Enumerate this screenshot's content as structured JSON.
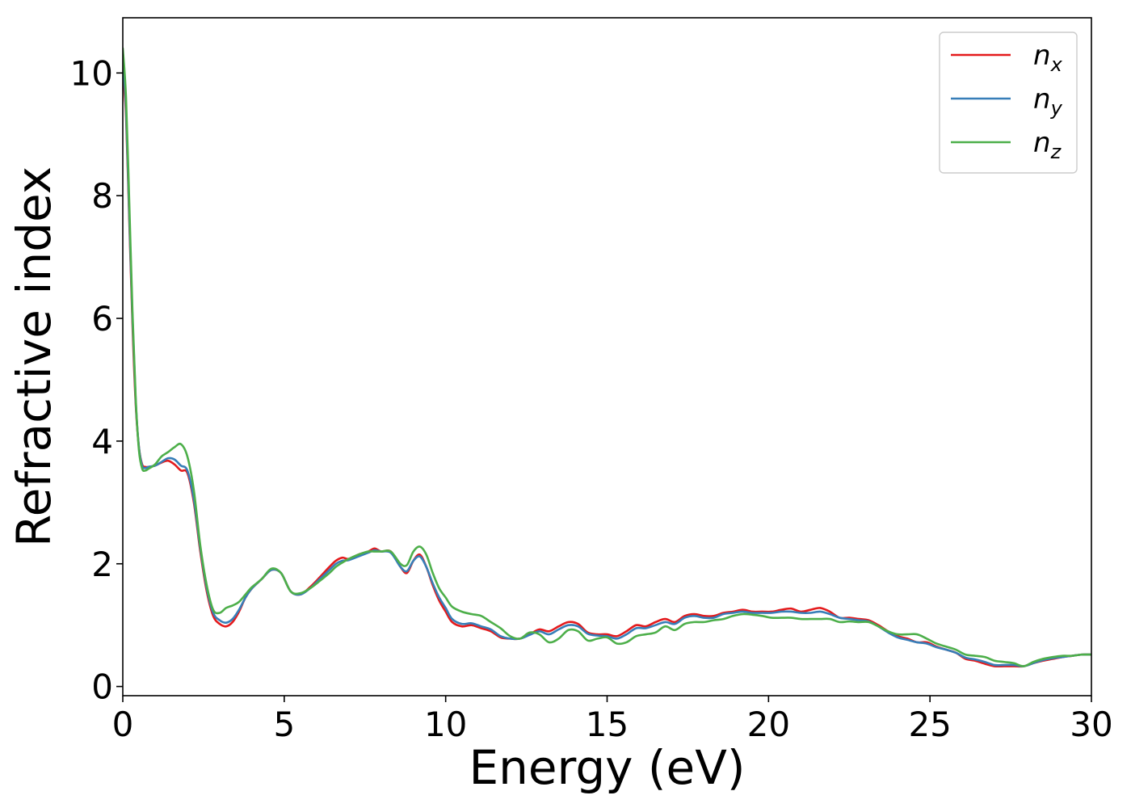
{
  "chart_data": {
    "type": "line",
    "title": "",
    "xlabel": "Energy (eV)",
    "ylabel": "Refractive index",
    "xlim": [
      0,
      30
    ],
    "ylim": [
      -0.15,
      10.9
    ],
    "xticks": [
      0,
      5,
      10,
      15,
      20,
      25,
      30
    ],
    "yticks": [
      0,
      2,
      4,
      6,
      8,
      10
    ],
    "grid": false,
    "legend_position": "top-right",
    "series": [
      {
        "name": "n",
        "subscript": "x",
        "color": "#e41a1c",
        "x": [
          0,
          0.1,
          0.2,
          0.3,
          0.4,
          0.5,
          0.6,
          0.7,
          0.8,
          1.0,
          1.2,
          1.4,
          1.6,
          1.8,
          2.0,
          2.2,
          2.4,
          2.6,
          2.8,
          3.0,
          3.2,
          3.4,
          3.6,
          3.8,
          4.0,
          4.3,
          4.6,
          4.9,
          5.2,
          5.5,
          5.8,
          6.1,
          6.4,
          6.6,
          6.8,
          7.0,
          7.3,
          7.6,
          7.8,
          8.0,
          8.3,
          8.6,
          8.8,
          9.0,
          9.2,
          9.4,
          9.6,
          9.8,
          10.0,
          10.2,
          10.5,
          10.8,
          11.1,
          11.4,
          11.7,
          12.0,
          12.3,
          12.6,
          12.9,
          13.2,
          13.5,
          13.8,
          14.1,
          14.4,
          14.7,
          15.0,
          15.3,
          15.6,
          15.9,
          16.2,
          16.5,
          16.8,
          17.1,
          17.4,
          17.7,
          18.0,
          18.3,
          18.6,
          18.9,
          19.2,
          19.5,
          19.8,
          20.1,
          20.4,
          20.7,
          21.0,
          21.3,
          21.6,
          21.9,
          22.2,
          22.5,
          22.8,
          23.1,
          23.4,
          23.7,
          24.0,
          24.3,
          24.6,
          24.9,
          25.2,
          25.5,
          25.8,
          26.1,
          26.4,
          26.7,
          27.0,
          27.3,
          27.6,
          27.9,
          28.2,
          28.5,
          28.8,
          29.1,
          29.4,
          29.7,
          30.0
        ],
        "y": [
          10.0,
          9.3,
          7.6,
          5.9,
          4.6,
          3.9,
          3.62,
          3.58,
          3.58,
          3.6,
          3.65,
          3.68,
          3.62,
          3.52,
          3.48,
          3.0,
          2.2,
          1.55,
          1.15,
          1.02,
          0.98,
          1.05,
          1.22,
          1.45,
          1.6,
          1.75,
          1.9,
          1.85,
          1.55,
          1.5,
          1.62,
          1.78,
          1.95,
          2.05,
          2.1,
          2.08,
          2.15,
          2.2,
          2.25,
          2.2,
          2.2,
          1.95,
          1.85,
          2.05,
          2.15,
          1.95,
          1.65,
          1.4,
          1.22,
          1.05,
          0.98,
          1.0,
          0.95,
          0.9,
          0.8,
          0.78,
          0.78,
          0.85,
          0.93,
          0.9,
          0.98,
          1.05,
          1.02,
          0.88,
          0.85,
          0.85,
          0.82,
          0.9,
          1.0,
          0.98,
          1.05,
          1.1,
          1.05,
          1.15,
          1.18,
          1.15,
          1.15,
          1.2,
          1.22,
          1.25,
          1.22,
          1.22,
          1.22,
          1.25,
          1.27,
          1.22,
          1.25,
          1.28,
          1.22,
          1.12,
          1.12,
          1.1,
          1.08,
          1.0,
          0.9,
          0.82,
          0.78,
          0.72,
          0.72,
          0.65,
          0.6,
          0.55,
          0.45,
          0.42,
          0.37,
          0.33,
          0.33,
          0.33,
          0.33,
          0.38,
          0.42,
          0.45,
          0.48,
          0.5,
          0.52,
          0.52
        ]
      },
      {
        "name": "n",
        "subscript": "y",
        "color": "#377eb8",
        "x": [
          0,
          0.1,
          0.2,
          0.3,
          0.4,
          0.5,
          0.6,
          0.7,
          0.8,
          1.0,
          1.2,
          1.4,
          1.6,
          1.8,
          2.0,
          2.2,
          2.4,
          2.6,
          2.8,
          3.0,
          3.2,
          3.4,
          3.6,
          3.8,
          4.0,
          4.3,
          4.6,
          4.9,
          5.2,
          5.5,
          5.8,
          6.1,
          6.4,
          6.6,
          6.8,
          7.0,
          7.3,
          7.6,
          7.8,
          8.0,
          8.3,
          8.6,
          8.8,
          9.0,
          9.2,
          9.4,
          9.6,
          9.8,
          10.0,
          10.2,
          10.5,
          10.8,
          11.1,
          11.4,
          11.7,
          12.0,
          12.3,
          12.6,
          12.9,
          13.2,
          13.5,
          13.8,
          14.1,
          14.4,
          14.7,
          15.0,
          15.3,
          15.6,
          15.9,
          16.2,
          16.5,
          16.8,
          17.1,
          17.4,
          17.7,
          18.0,
          18.3,
          18.6,
          18.9,
          19.2,
          19.5,
          19.8,
          20.1,
          20.4,
          20.7,
          21.0,
          21.3,
          21.6,
          21.9,
          22.2,
          22.5,
          22.8,
          23.1,
          23.4,
          23.7,
          24.0,
          24.3,
          24.6,
          24.9,
          25.2,
          25.5,
          25.8,
          26.1,
          26.4,
          26.7,
          27.0,
          27.3,
          27.6,
          27.9,
          28.2,
          28.5,
          28.8,
          29.1,
          29.4,
          29.7,
          30.0
        ],
        "y": [
          10.2,
          9.4,
          7.7,
          6.0,
          4.65,
          3.9,
          3.6,
          3.56,
          3.58,
          3.6,
          3.66,
          3.72,
          3.7,
          3.6,
          3.52,
          3.05,
          2.25,
          1.6,
          1.2,
          1.08,
          1.04,
          1.1,
          1.25,
          1.45,
          1.6,
          1.75,
          1.9,
          1.85,
          1.55,
          1.5,
          1.6,
          1.75,
          1.9,
          2.0,
          2.05,
          2.06,
          2.12,
          2.18,
          2.22,
          2.2,
          2.18,
          1.95,
          1.88,
          2.05,
          2.12,
          1.95,
          1.68,
          1.45,
          1.28,
          1.1,
          1.02,
          1.03,
          0.98,
          0.93,
          0.82,
          0.78,
          0.78,
          0.84,
          0.9,
          0.85,
          0.93,
          1.0,
          0.98,
          0.86,
          0.83,
          0.82,
          0.78,
          0.85,
          0.95,
          0.95,
          1.0,
          1.05,
          1.02,
          1.12,
          1.15,
          1.12,
          1.12,
          1.18,
          1.2,
          1.22,
          1.2,
          1.2,
          1.2,
          1.22,
          1.22,
          1.2,
          1.2,
          1.22,
          1.18,
          1.12,
          1.1,
          1.08,
          1.06,
          0.98,
          0.88,
          0.8,
          0.76,
          0.72,
          0.7,
          0.64,
          0.6,
          0.55,
          0.47,
          0.44,
          0.4,
          0.35,
          0.35,
          0.35,
          0.33,
          0.38,
          0.43,
          0.46,
          0.48,
          0.5,
          0.52,
          0.52
        ]
      },
      {
        "name": "n",
        "subscript": "z",
        "color": "#4daf4a",
        "x": [
          0,
          0.1,
          0.2,
          0.3,
          0.4,
          0.5,
          0.6,
          0.7,
          0.8,
          1.0,
          1.2,
          1.4,
          1.6,
          1.8,
          2.0,
          2.2,
          2.4,
          2.6,
          2.8,
          3.0,
          3.2,
          3.4,
          3.6,
          3.8,
          4.0,
          4.3,
          4.6,
          4.9,
          5.2,
          5.5,
          5.8,
          6.1,
          6.4,
          6.6,
          6.8,
          7.0,
          7.3,
          7.6,
          7.8,
          8.0,
          8.3,
          8.6,
          8.8,
          9.0,
          9.2,
          9.4,
          9.6,
          9.8,
          10.0,
          10.2,
          10.5,
          10.8,
          11.1,
          11.4,
          11.7,
          12.0,
          12.3,
          12.6,
          12.9,
          13.2,
          13.5,
          13.8,
          14.1,
          14.4,
          14.7,
          15.0,
          15.3,
          15.6,
          15.9,
          16.2,
          16.5,
          16.8,
          17.1,
          17.4,
          17.7,
          18.0,
          18.3,
          18.6,
          18.9,
          19.2,
          19.5,
          19.8,
          20.1,
          20.4,
          20.7,
          21.0,
          21.3,
          21.6,
          21.9,
          22.2,
          22.5,
          22.8,
          23.1,
          23.4,
          23.7,
          24.0,
          24.3,
          24.6,
          24.9,
          25.2,
          25.5,
          25.8,
          26.1,
          26.4,
          26.7,
          27.0,
          27.3,
          27.6,
          27.9,
          28.2,
          28.5,
          28.8,
          29.1,
          29.4,
          29.7,
          30.0
        ],
        "y": [
          10.4,
          9.6,
          7.9,
          6.1,
          4.7,
          3.85,
          3.55,
          3.52,
          3.55,
          3.62,
          3.75,
          3.82,
          3.9,
          3.95,
          3.75,
          3.2,
          2.3,
          1.65,
          1.25,
          1.2,
          1.28,
          1.32,
          1.38,
          1.5,
          1.62,
          1.75,
          1.92,
          1.85,
          1.55,
          1.52,
          1.6,
          1.72,
          1.85,
          1.95,
          2.02,
          2.08,
          2.15,
          2.2,
          2.2,
          2.2,
          2.2,
          2.0,
          1.98,
          2.2,
          2.28,
          2.15,
          1.85,
          1.6,
          1.45,
          1.3,
          1.22,
          1.18,
          1.15,
          1.05,
          0.95,
          0.82,
          0.78,
          0.88,
          0.85,
          0.72,
          0.78,
          0.92,
          0.9,
          0.75,
          0.78,
          0.8,
          0.7,
          0.72,
          0.82,
          0.85,
          0.88,
          0.98,
          0.92,
          1.02,
          1.05,
          1.05,
          1.08,
          1.1,
          1.15,
          1.18,
          1.17,
          1.15,
          1.12,
          1.12,
          1.12,
          1.1,
          1.1,
          1.1,
          1.1,
          1.05,
          1.06,
          1.05,
          1.05,
          0.98,
          0.9,
          0.85,
          0.85,
          0.85,
          0.78,
          0.7,
          0.65,
          0.6,
          0.52,
          0.5,
          0.48,
          0.42,
          0.4,
          0.38,
          0.33,
          0.4,
          0.45,
          0.48,
          0.5,
          0.5,
          0.52,
          0.52
        ]
      }
    ]
  }
}
